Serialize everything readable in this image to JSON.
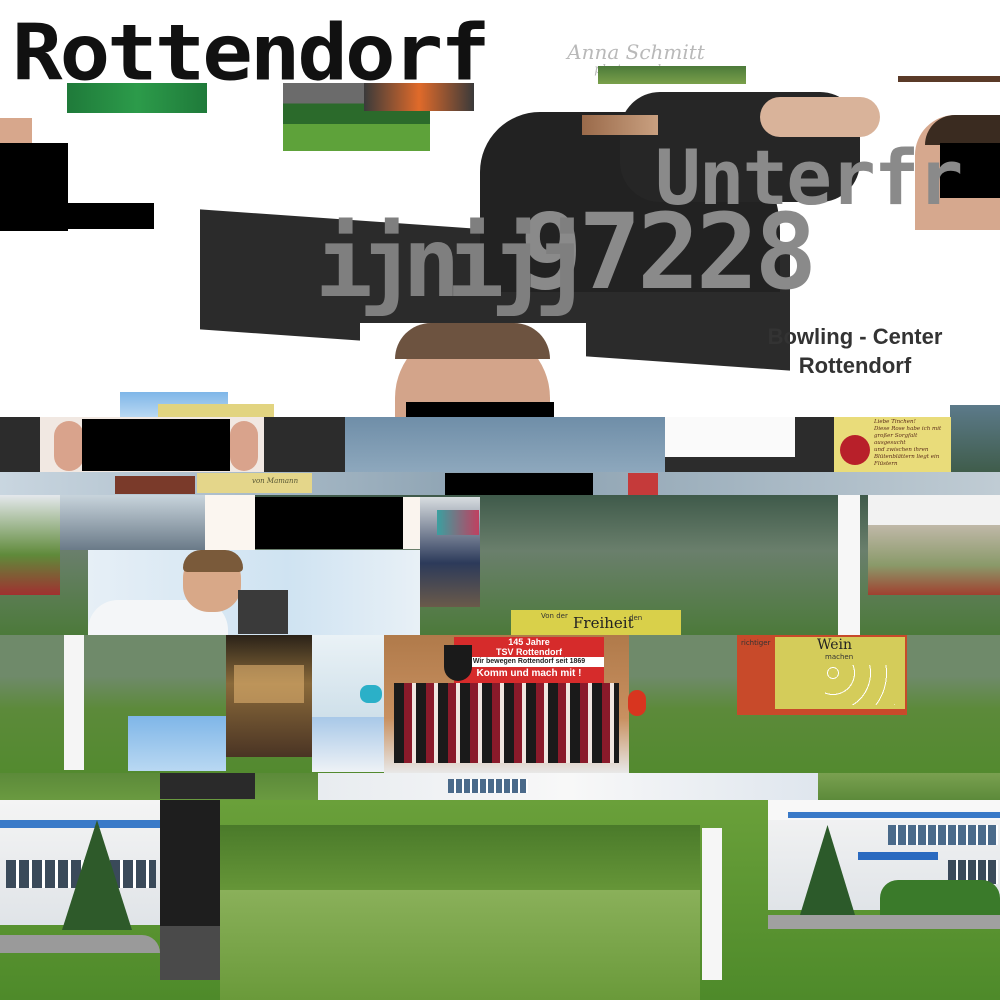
{
  "headline": {
    "title": "Rottendorf"
  },
  "overlay_text": {
    "region": "Unterfr",
    "postal_code": "97228",
    "noise_glyphs": "ijnijj"
  },
  "caption": {
    "line1": "Bowling - Center",
    "line2": "Rottendorf"
  },
  "photographer_signature": {
    "name": "Anna Schmitt",
    "subtitle": "photographer"
  },
  "poster": {
    "line1": "145 Jahre",
    "line2": "TSV Rottendorf",
    "line3": "Wir bewegen Rottendorf seit 1869",
    "line4": "Komm und mach mit !"
  },
  "books": {
    "left_text": "Von der",
    "left_big": "Freiheit",
    "left_tail": "den",
    "right_text": "richtiger",
    "right_big": "Wein",
    "right_mid": "machen"
  },
  "card": {
    "lines": [
      "Liebe Tinchen!",
      "Diese Rose habe ich mit",
      "großer Sorgfalt ausgesucht",
      "und zwischen ihren",
      "Blütenblättern liegt ein",
      "Flüstern"
    ]
  },
  "small_label": {
    "text": "von Mamann"
  },
  "colors": {
    "poster_red": "#d62b2b",
    "caption_text": "#333333",
    "grey_overlay": "#8a8a8a"
  }
}
